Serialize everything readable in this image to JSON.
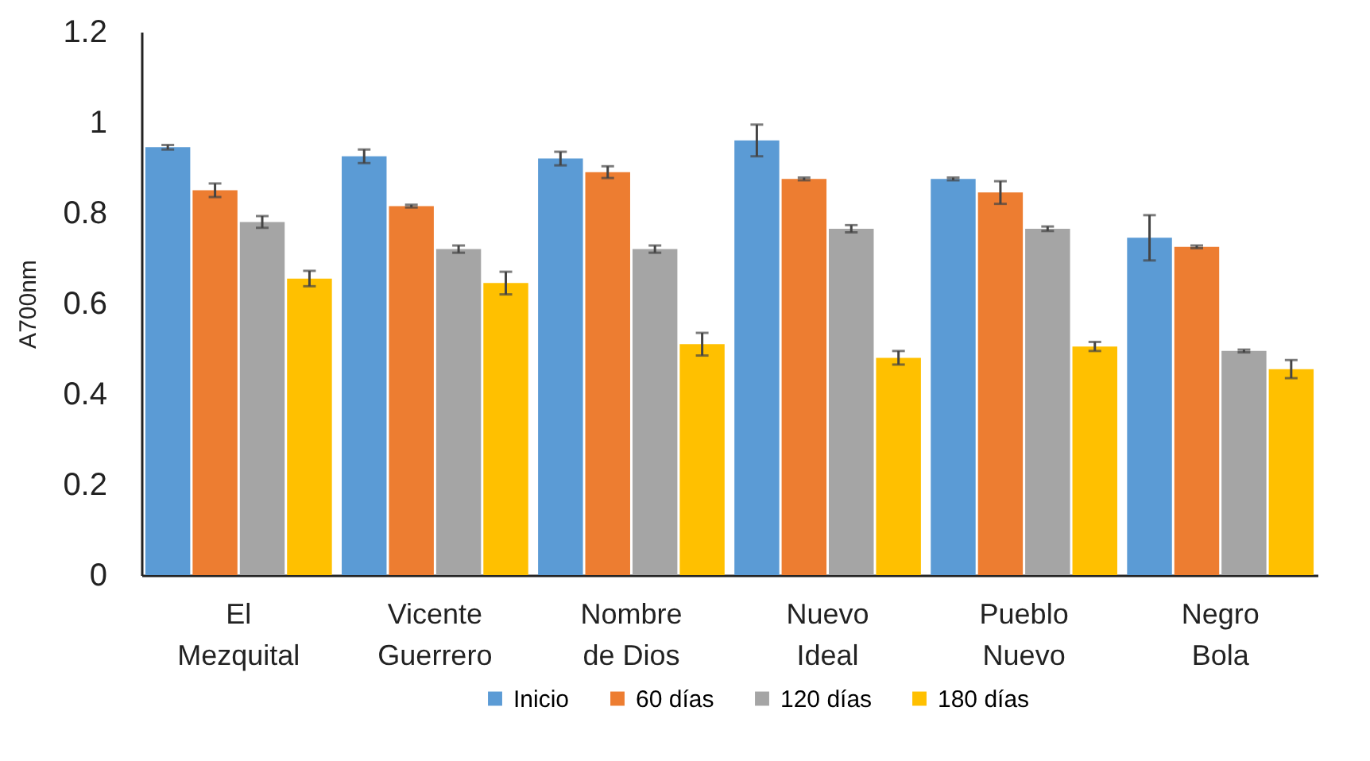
{
  "chart_data": {
    "type": "bar",
    "ylabel": "A700nm",
    "categories": [
      "El Mezquital",
      "Vicente Guerrero",
      "Nombre de Dios",
      "Nuevo Ideal",
      "Pueblo Nuevo",
      "Negro Bola"
    ],
    "series": [
      {
        "name": "Inicio",
        "color": "#5b9bd5",
        "values": [
          0.945,
          0.925,
          0.92,
          0.96,
          0.875,
          0.745
        ],
        "errors": [
          0.005,
          0.015,
          0.015,
          0.035,
          0.003,
          0.05
        ]
      },
      {
        "name": "60 días",
        "color": "#ed7d31",
        "values": [
          0.85,
          0.815,
          0.89,
          0.875,
          0.845,
          0.725
        ],
        "errors": [
          0.015,
          0.003,
          0.013,
          0.003,
          0.025,
          0.003
        ]
      },
      {
        "name": "120 días",
        "color": "#a5a5a5",
        "values": [
          0.78,
          0.72,
          0.72,
          0.765,
          0.765,
          0.495
        ],
        "errors": [
          0.013,
          0.008,
          0.008,
          0.008,
          0.005,
          0.003
        ]
      },
      {
        "name": "180 días",
        "color": "#ffc000",
        "values": [
          0.655,
          0.645,
          0.51,
          0.48,
          0.505,
          0.455
        ],
        "errors": [
          0.017,
          0.025,
          0.025,
          0.015,
          0.01,
          0.02
        ]
      }
    ],
    "ylim": [
      0,
      1.2
    ],
    "yticks": [
      0,
      0.2,
      0.4,
      0.6,
      0.8,
      1,
      1.2
    ],
    "grid": false,
    "legend": "bottom"
  }
}
